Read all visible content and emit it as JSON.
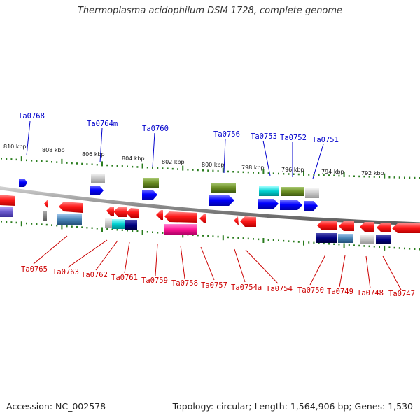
{
  "title": "Thermoplasma acidophilum DSM 1728, complete genome",
  "footer": {
    "accession": "Accession: NC_002578",
    "summary": "Topology: circular; Length: 1,564,906 bp; Genes: 1,530"
  },
  "scale_labels": [
    "810 kbp",
    "808 kbp",
    "806 kbp",
    "804 kbp",
    "802 kbp",
    "800 kbp",
    "798 kbp",
    "796 kbp",
    "794 kbp",
    "792 kbp"
  ],
  "top_genes": [
    "Ta0768",
    "Ta0764m",
    "Ta0760",
    "Ta0756",
    "Ta0753",
    "Ta0752",
    "Ta0751"
  ],
  "bottom_genes": [
    "Ta0765",
    "Ta0763",
    "Ta0762",
    "Ta0761",
    "Ta0759",
    "Ta0758",
    "Ta0757",
    "Ta0754a",
    "Ta0754",
    "Ta0750",
    "Ta0749",
    "Ta0748",
    "Ta0747"
  ],
  "colors": {
    "forward_label": "#0000cc",
    "reverse_label": "#cc0000",
    "tick": "#2a7d1e",
    "backbone": "#888888"
  }
}
